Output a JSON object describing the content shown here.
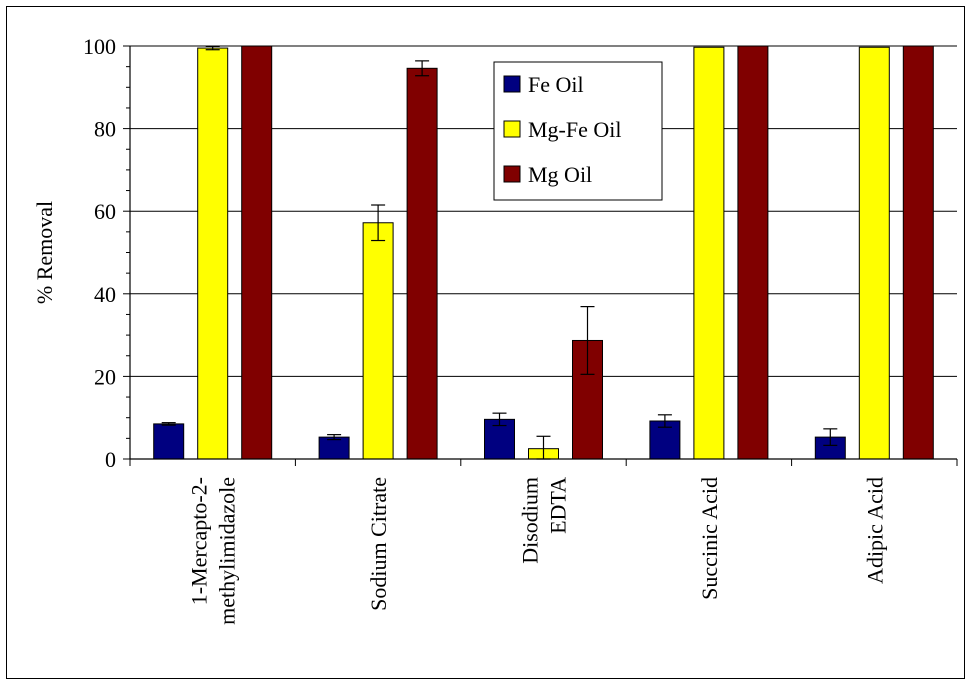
{
  "chart_data": {
    "type": "bar",
    "title": "",
    "xlabel": "",
    "ylabel": "% Removal",
    "ylim": [
      0,
      100
    ],
    "yticks": [
      "0",
      "20",
      "40",
      "60",
      "80",
      "100"
    ],
    "grid": true,
    "legend_position": "top-center",
    "categories": [
      [
        "1-Mercapto-2-",
        "methylimidazole"
      ],
      [
        "Sodium Citrate"
      ],
      [
        "Disodium",
        "EDTA"
      ],
      [
        "Succinic Acid"
      ],
      [
        "Adipic Acid"
      ]
    ],
    "series": [
      {
        "name": "Fe Oil",
        "color": "#000080",
        "values": [
          8.5,
          5.3,
          9.6,
          9.2,
          5.3
        ],
        "errors": [
          0.3,
          0.6,
          1.5,
          1.5,
          2.0
        ]
      },
      {
        "name": "Mg-Fe Oil",
        "color": "#FFFF00",
        "values": [
          99.5,
          57.2,
          2.5,
          99.7,
          99.7
        ],
        "errors": [
          0.4,
          4.3,
          3.0,
          0.0,
          0.0
        ]
      },
      {
        "name": "Mg Oil",
        "color": "#800000",
        "values": [
          100,
          94.6,
          28.7,
          100,
          100
        ],
        "errors": [
          0.0,
          1.8,
          8.2,
          0.0,
          0.0
        ]
      }
    ]
  }
}
